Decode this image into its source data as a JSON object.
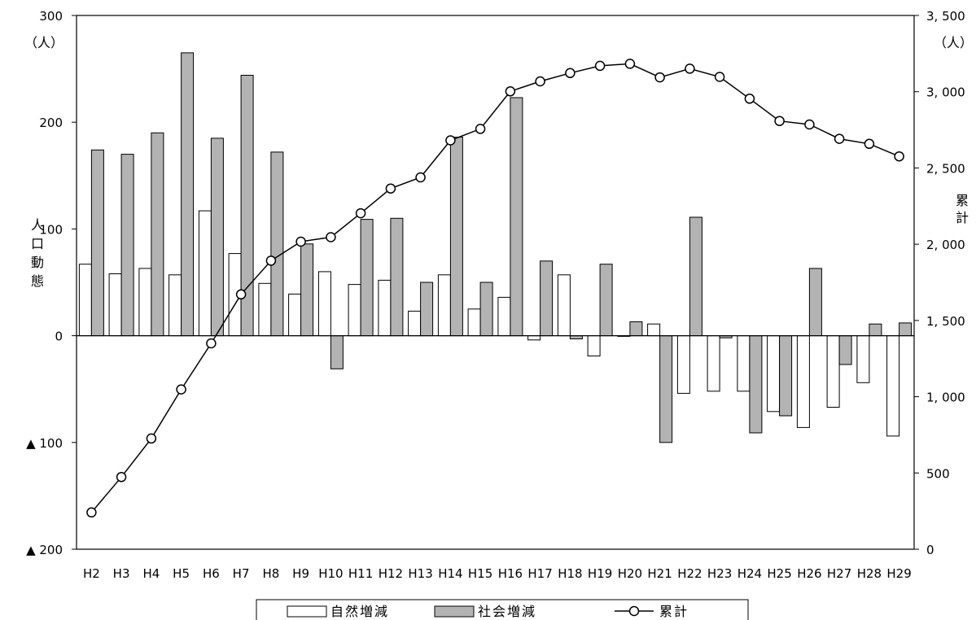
{
  "chart_data": {
    "type": "bar",
    "categories": [
      "H2",
      "H3",
      "H4",
      "H5",
      "H6",
      "H7",
      "H8",
      "H9",
      "H10",
      "H11",
      "H12",
      "H13",
      "H14",
      "H15",
      "H16",
      "H17",
      "H18",
      "H19",
      "H20",
      "H21",
      "H22",
      "H23",
      "H24",
      "H25",
      "H26",
      "H27",
      "H28",
      "H29"
    ],
    "series": [
      {
        "name": "自然増減",
        "type": "bar",
        "axis": "left",
        "color": "#ffffff",
        "values": [
          67,
          58,
          63,
          57,
          117,
          77,
          49,
          39,
          60,
          48,
          52,
          23,
          57,
          25,
          36,
          -4,
          57,
          -19,
          0,
          11,
          -54,
          -52,
          -52,
          -71,
          -86,
          -67,
          -44,
          -94
        ]
      },
      {
        "name": "社会増減",
        "type": "bar",
        "axis": "left",
        "color": "#b3b3b3",
        "values": [
          174,
          170,
          190,
          265,
          185,
          244,
          172,
          86,
          -31,
          109,
          110,
          50,
          186,
          50,
          223,
          70,
          -3,
          67,
          13,
          -100,
          111,
          -2,
          -91,
          -75,
          63,
          -27,
          11,
          12
        ]
      },
      {
        "name": "累計",
        "type": "line",
        "axis": "right",
        "color": "#000000",
        "values": [
          241,
          473,
          726,
          1048,
          1350,
          1671,
          1892,
          2017,
          2046,
          2203,
          2365,
          2438,
          2681,
          2756,
          3002,
          3068,
          3122,
          3170,
          3183,
          3094,
          3151,
          3097,
          2954,
          2808,
          2785,
          2691,
          2658,
          2576
        ]
      }
    ],
    "left_axis": {
      "min": -200,
      "max": 300,
      "ticks": [
        300,
        200,
        100,
        0,
        -100,
        -200
      ],
      "tick_labels": [
        "300",
        "200",
        "100",
        "0",
        "▲ 100",
        "▲ 200"
      ],
      "unit": "（人）",
      "label": [
        "人",
        "口",
        "動",
        "態"
      ]
    },
    "right_axis": {
      "min": 0,
      "max": 3500,
      "ticks": [
        3500,
        3000,
        2500,
        2000,
        1500,
        1000,
        500,
        0
      ],
      "tick_labels": [
        "3, 500",
        "3, 000",
        "2, 500",
        "2, 000",
        "1, 500",
        "1, 000",
        "500",
        "0"
      ],
      "unit": "（人）",
      "label": [
        "累",
        "計"
      ]
    },
    "legend": {
      "position": "bottom",
      "items": [
        "自然増減",
        "社会増減",
        "累計"
      ]
    },
    "grid": false
  }
}
